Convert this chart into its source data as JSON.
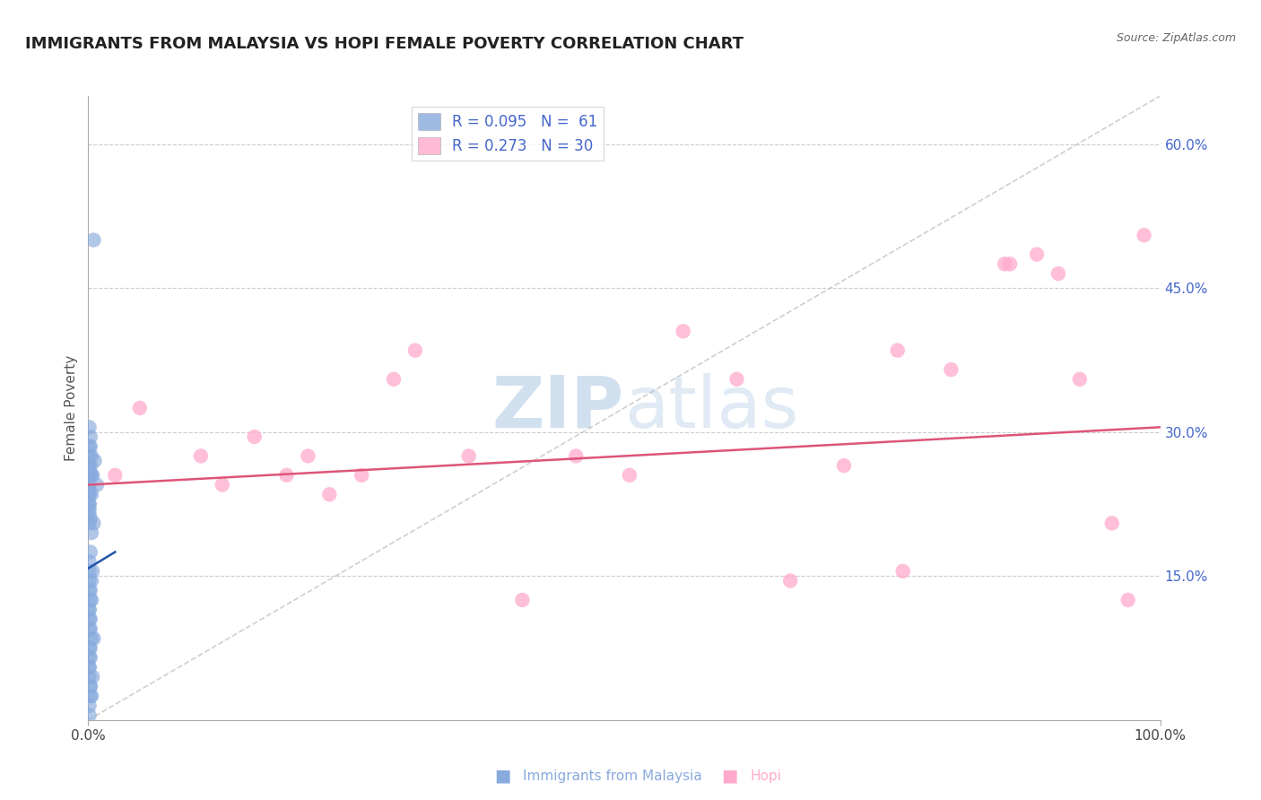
{
  "title": "IMMIGRANTS FROM MALAYSIA VS HOPI FEMALE POVERTY CORRELATION CHART",
  "source": "Source: ZipAtlas.com",
  "ylabel": "Female Poverty",
  "xlim": [
    0.0,
    1.0
  ],
  "ylim": [
    0.0,
    0.65
  ],
  "blue_color": "#88aadd",
  "pink_color": "#ffaacc",
  "blue_line_color": "#2255aa",
  "pink_line_color": "#dd5577",
  "diag_color": "#bbbbbb",
  "watermark_zip": "ZIP",
  "watermark_atlas": "atlas",
  "watermark_color": "#99bbdd",
  "legend_label1": "Immigrants from Malaysia",
  "legend_label2": "Hopi",
  "blue_x": [
    0.005,
    0.003,
    0.002,
    0.001,
    0.004,
    0.006,
    0.002,
    0.001,
    0.003,
    0.001,
    0.002,
    0.005,
    0.003,
    0.001,
    0.002,
    0.004,
    0.001,
    0.001,
    0.002,
    0.003,
    0.001,
    0.002,
    0.001,
    0.003,
    0.002,
    0.001,
    0.001,
    0.004,
    0.002,
    0.001,
    0.001,
    0.003,
    0.002,
    0.001,
    0.001,
    0.002,
    0.001,
    0.003,
    0.001,
    0.002,
    0.001,
    0.001,
    0.002,
    0.005,
    0.001,
    0.002,
    0.001,
    0.001,
    0.002,
    0.003,
    0.001,
    0.001,
    0.002,
    0.001,
    0.001,
    0.001,
    0.008,
    0.001,
    0.001,
    0.001,
    0.001
  ],
  "blue_y": [
    0.5,
    0.275,
    0.285,
    0.26,
    0.255,
    0.27,
    0.255,
    0.24,
    0.235,
    0.22,
    0.21,
    0.205,
    0.195,
    0.225,
    0.175,
    0.155,
    0.165,
    0.145,
    0.135,
    0.125,
    0.115,
    0.105,
    0.095,
    0.085,
    0.075,
    0.065,
    0.055,
    0.045,
    0.035,
    0.235,
    0.245,
    0.255,
    0.025,
    0.015,
    0.005,
    0.265,
    0.155,
    0.145,
    0.135,
    0.125,
    0.115,
    0.105,
    0.095,
    0.085,
    0.075,
    0.065,
    0.055,
    0.045,
    0.035,
    0.025,
    0.275,
    0.285,
    0.295,
    0.305,
    0.265,
    0.255,
    0.245,
    0.235,
    0.225,
    0.215,
    0.205
  ],
  "pink_x": [
    0.025,
    0.048,
    0.105,
    0.125,
    0.155,
    0.185,
    0.205,
    0.225,
    0.255,
    0.285,
    0.305,
    0.355,
    0.405,
    0.455,
    0.505,
    0.555,
    0.605,
    0.655,
    0.705,
    0.755,
    0.805,
    0.855,
    0.885,
    0.905,
    0.925,
    0.955,
    0.97,
    0.985,
    0.76,
    0.86
  ],
  "pink_y": [
    0.255,
    0.325,
    0.275,
    0.245,
    0.295,
    0.255,
    0.275,
    0.235,
    0.255,
    0.355,
    0.385,
    0.275,
    0.125,
    0.275,
    0.255,
    0.405,
    0.355,
    0.145,
    0.265,
    0.385,
    0.365,
    0.475,
    0.485,
    0.465,
    0.355,
    0.205,
    0.125,
    0.505,
    0.155,
    0.475
  ],
  "pink_trend_x0": 0.0,
  "pink_trend_y0": 0.245,
  "pink_trend_x1": 1.0,
  "pink_trend_y1": 0.305,
  "blue_trend_x0": 0.0,
  "blue_trend_y0": 0.158,
  "blue_trend_x1": 0.025,
  "blue_trend_y1": 0.175
}
